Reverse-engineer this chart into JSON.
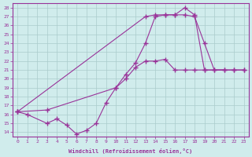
{
  "xlabel": "Windchill (Refroidissement éolien,°C)",
  "color": "#993399",
  "bg_color": "#d0ecec",
  "grid_color": "#aacccc",
  "xlim": [
    -0.5,
    23.5
  ],
  "ylim": [
    13.5,
    28.5
  ],
  "yticks": [
    14,
    15,
    16,
    17,
    18,
    19,
    20,
    21,
    22,
    23,
    24,
    25,
    26,
    27,
    28
  ],
  "xticks": [
    0,
    1,
    2,
    3,
    4,
    5,
    6,
    7,
    8,
    9,
    10,
    11,
    12,
    13,
    14,
    15,
    16,
    17,
    18,
    19,
    20,
    21,
    22,
    23
  ],
  "line1_data": [
    [
      0,
      16.3
    ],
    [
      1,
      16.0
    ],
    [
      3,
      15.0
    ],
    [
      4,
      15.5
    ],
    [
      5,
      14.8
    ],
    [
      6,
      13.8
    ],
    [
      7,
      14.2
    ],
    [
      8,
      15.0
    ],
    [
      9,
      17.3
    ],
    [
      10,
      19.0
    ],
    [
      11,
      20.0
    ],
    [
      12,
      21.3
    ],
    [
      13,
      22.0
    ],
    [
      14,
      22.0
    ],
    [
      15,
      22.2
    ],
    [
      16,
      21.0
    ],
    [
      17,
      21.0
    ],
    [
      18,
      21.0
    ],
    [
      19,
      21.0
    ],
    [
      20,
      21.0
    ],
    [
      21,
      21.0
    ],
    [
      22,
      21.0
    ],
    [
      23,
      21.0
    ]
  ],
  "line2_data": [
    [
      0,
      16.3
    ],
    [
      3,
      16.5
    ],
    [
      10,
      19.0
    ],
    [
      11,
      20.5
    ],
    [
      12,
      21.8
    ],
    [
      13,
      24.0
    ],
    [
      14,
      27.0
    ],
    [
      15,
      27.2
    ],
    [
      16,
      27.2
    ],
    [
      17,
      27.2
    ],
    [
      18,
      27.0
    ],
    [
      19,
      24.0
    ],
    [
      20,
      21.0
    ],
    [
      21,
      21.0
    ]
  ],
  "line3_data": [
    [
      0,
      16.3
    ],
    [
      13,
      27.0
    ],
    [
      14,
      27.2
    ],
    [
      15,
      27.2
    ],
    [
      16,
      27.2
    ],
    [
      17,
      28.0
    ],
    [
      18,
      27.2
    ],
    [
      19,
      21.0
    ],
    [
      22,
      21.0
    ],
    [
      23,
      21.0
    ]
  ]
}
